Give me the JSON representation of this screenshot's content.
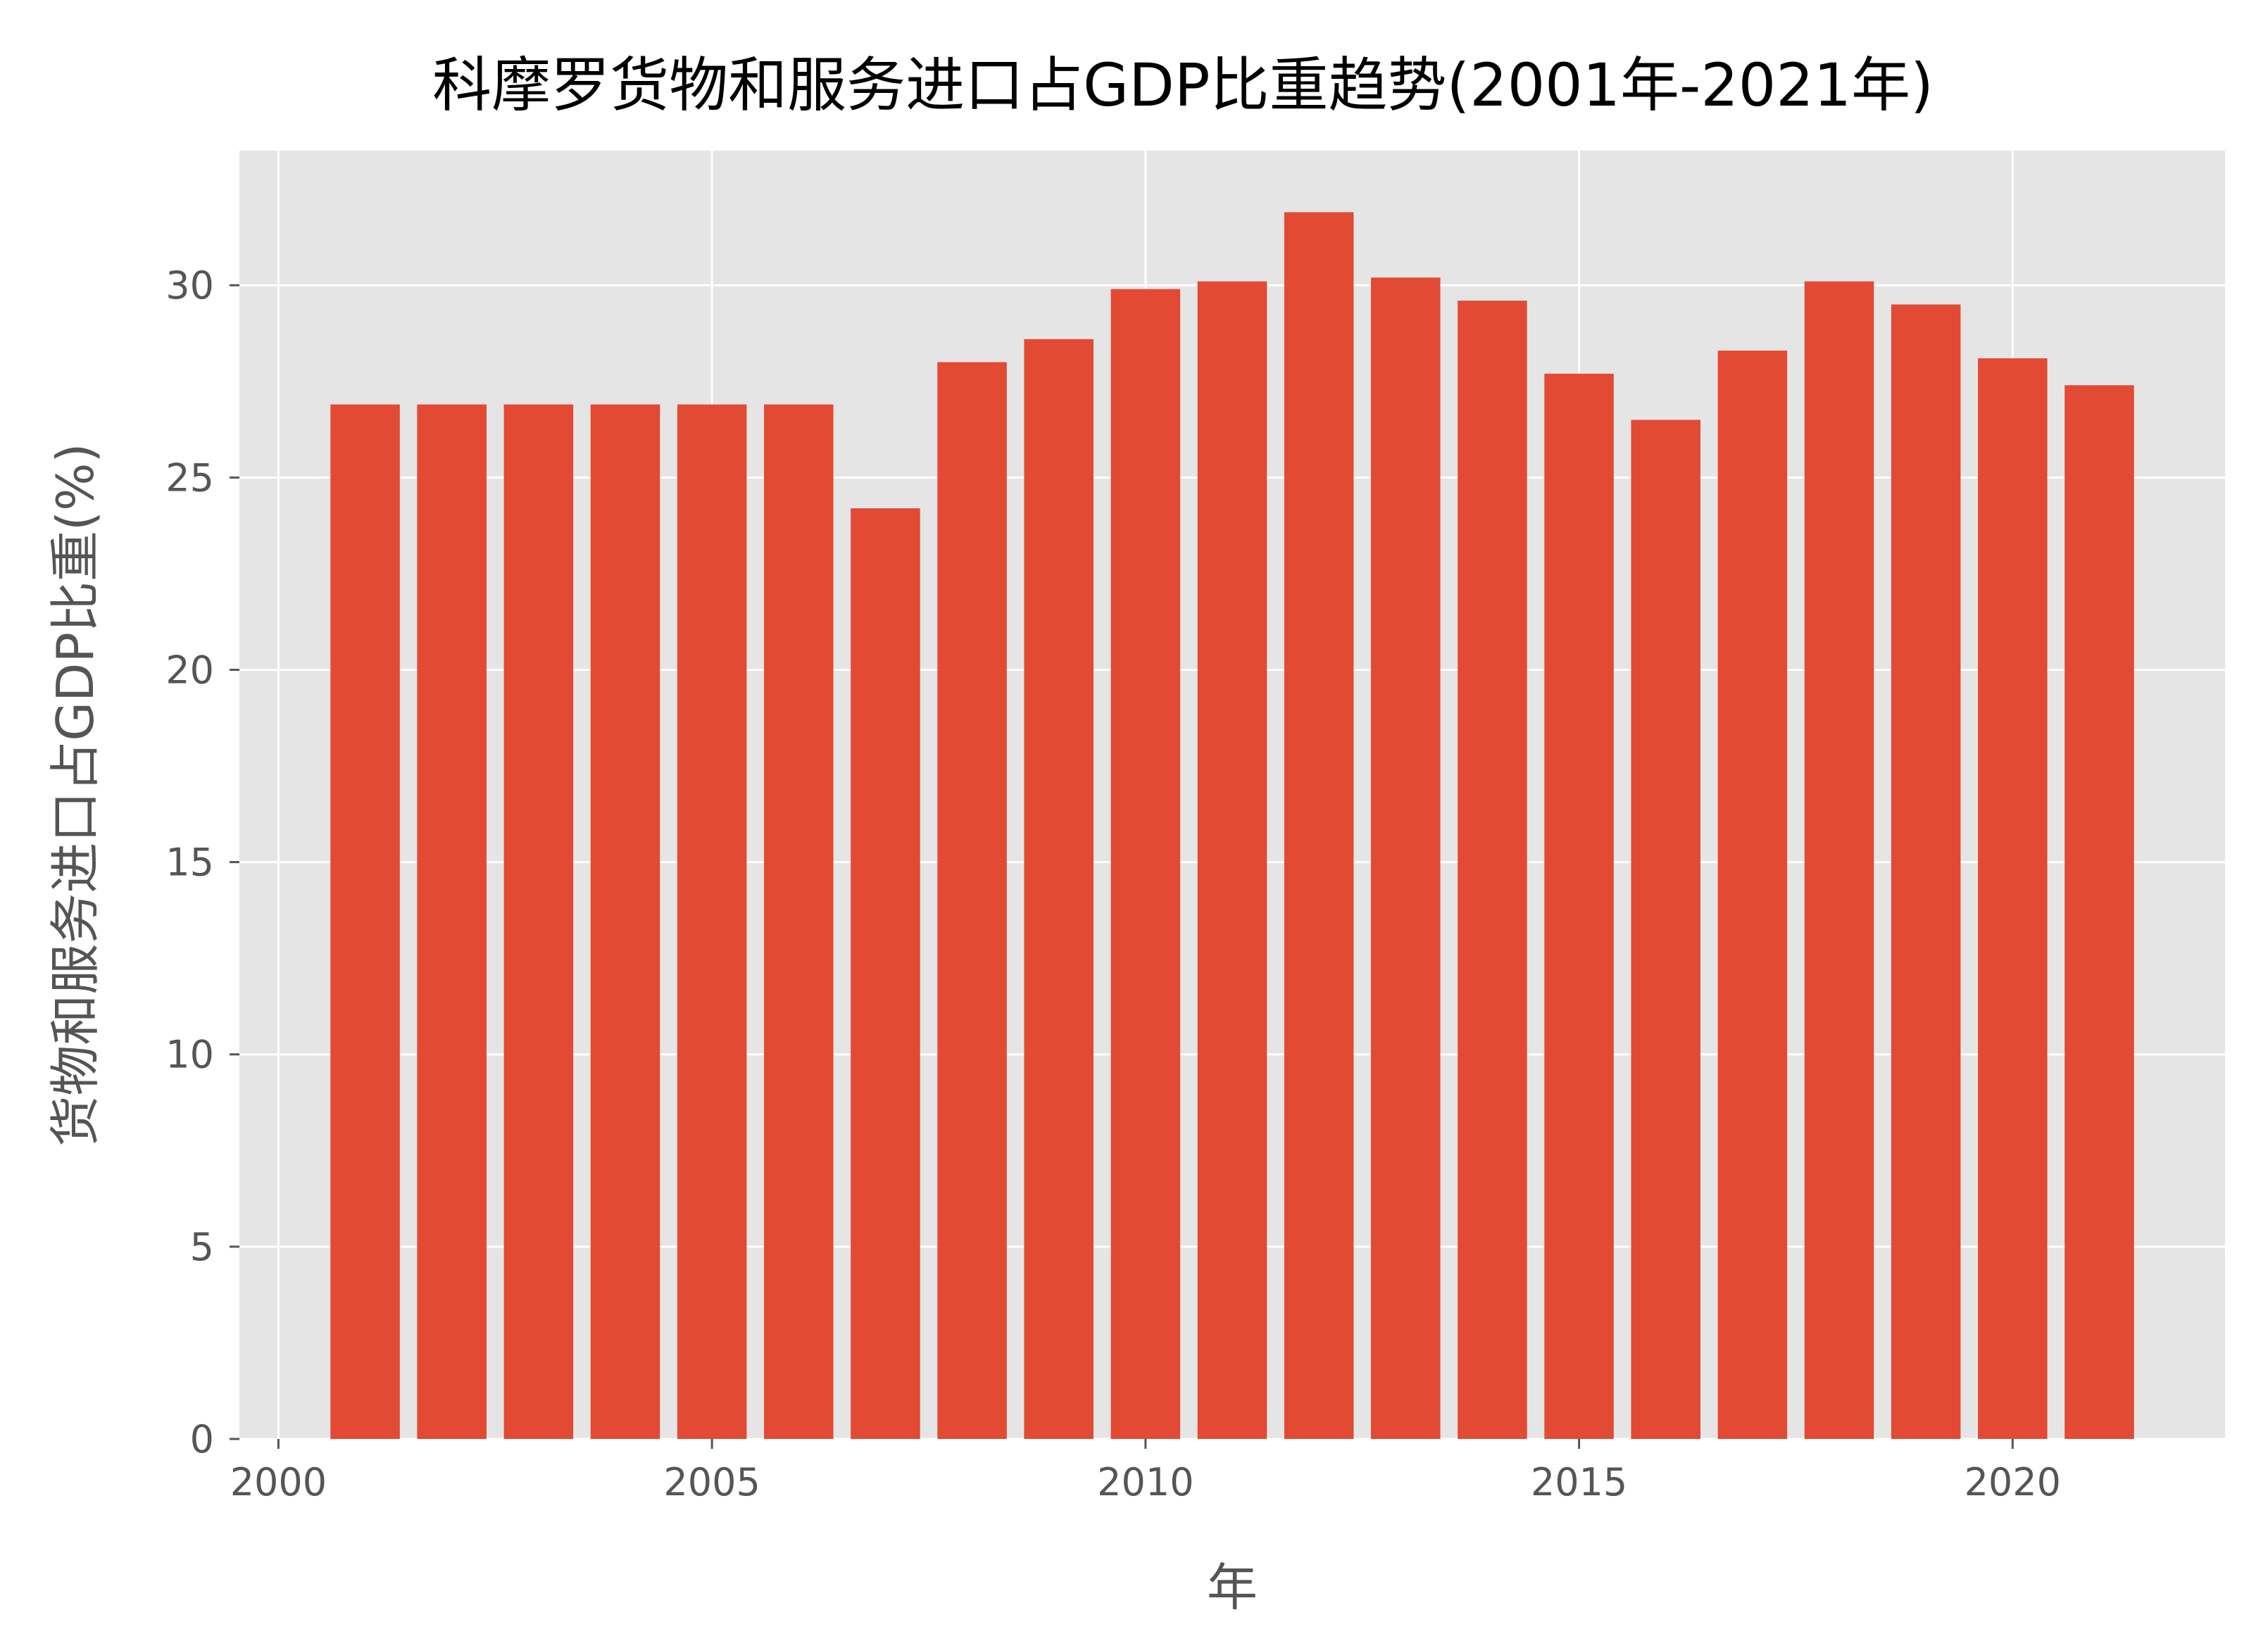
{
  "chart_data": {
    "type": "bar",
    "title": "科摩罗货物和服务进口占GDP比重趋势(2001年-2021年)",
    "xlabel": "年",
    "ylabel": "货物和服务进口占GDP比重(%)",
    "x": [
      2001,
      2002,
      2003,
      2004,
      2005,
      2006,
      2007,
      2008,
      2009,
      2010,
      2011,
      2012,
      2013,
      2014,
      2015,
      2016,
      2017,
      2018,
      2019,
      2020,
      2021
    ],
    "values": [
      26.9,
      26.9,
      26.9,
      26.9,
      26.9,
      26.9,
      24.2,
      28.0,
      28.6,
      29.9,
      30.1,
      31.9,
      30.2,
      29.6,
      27.7,
      26.5,
      28.3,
      30.1,
      29.5,
      28.1,
      27.4
    ],
    "xlim": [
      1999.55,
      2022.45
    ],
    "ylim": [
      0,
      33.5
    ],
    "xticks": [
      "2000",
      "2005",
      "2010",
      "2015",
      "2020"
    ],
    "yticks": [
      "0",
      "5",
      "10",
      "15",
      "20",
      "25",
      "30"
    ],
    "grid": true,
    "bar_color": "#E24A33",
    "plot_background": "#E5E5E5",
    "grid_color": "#FFFFFF",
    "text_color": "#555555"
  }
}
